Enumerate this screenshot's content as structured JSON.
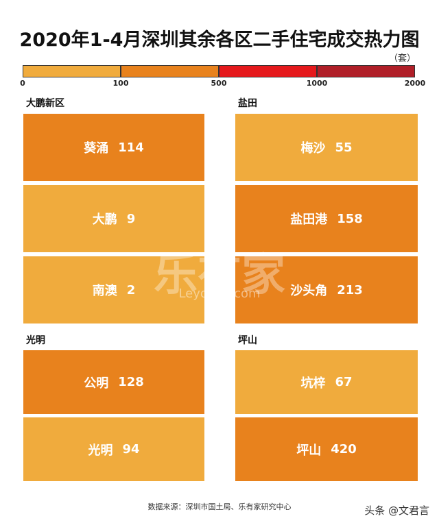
{
  "header": {
    "title": "2020年1-4月深圳其余各区二手住宅成交热力图",
    "unit": "（套）"
  },
  "legend": {
    "ticks": [
      0,
      100,
      500,
      1000,
      2000
    ],
    "colors": [
      "#f0ab3d",
      "#e8821d",
      "#e5191c",
      "#b01f28"
    ]
  },
  "regions": [
    {
      "name": "大鹏新区",
      "blocks": [
        {
          "name": "葵涌",
          "value": 114
        },
        {
          "name": "大鹏",
          "value": 9
        },
        {
          "name": "南澳",
          "value": 2
        }
      ]
    },
    {
      "name": "盐田",
      "blocks": [
        {
          "name": "梅沙",
          "value": 55
        },
        {
          "name": "盐田港",
          "value": 158
        },
        {
          "name": "沙头角",
          "value": 213
        }
      ]
    },
    {
      "name": "光明",
      "blocks": [
        {
          "name": "公明",
          "value": 128
        },
        {
          "name": "光明",
          "value": 94
        }
      ]
    },
    {
      "name": "坪山",
      "blocks": [
        {
          "name": "坑梓",
          "value": 67
        },
        {
          "name": "坪山",
          "value": 420
        }
      ]
    }
  ],
  "source": "数据来源：深圳市国土局、乐有家研究中心",
  "watermark": {
    "brand": "乐有家",
    "url": "Leyoujia.com",
    "credit": "头条 @文君言"
  }
}
